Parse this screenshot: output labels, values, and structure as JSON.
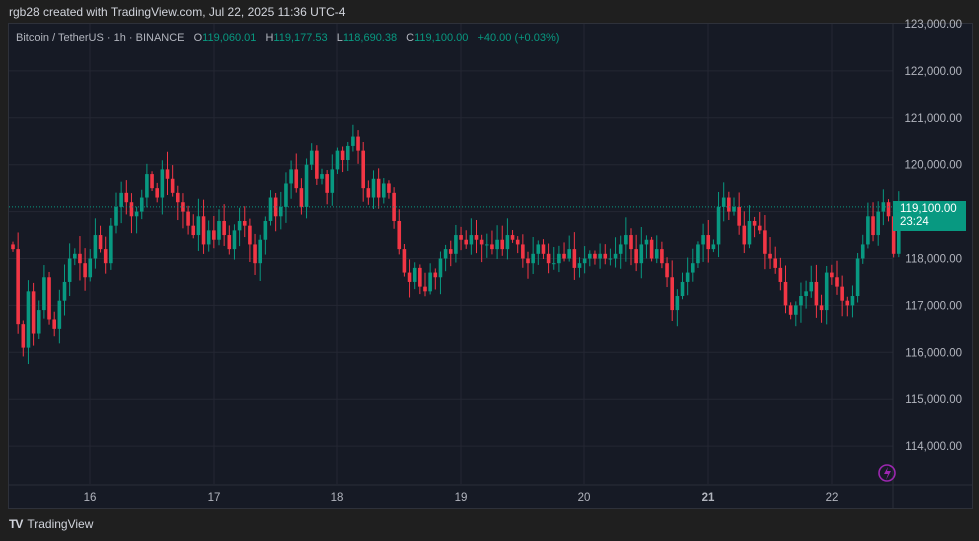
{
  "credit": "rgb28 created with TradingView.com, Jul 22, 2025 11:36 UTC-4",
  "legend": {
    "symbol": "Bitcoin / TetherUS · 1h · BINANCE",
    "open_label": "O",
    "open": "119,060.01",
    "high_label": "H",
    "high": "119,177.53",
    "low_label": "L",
    "low": "118,690.38",
    "close_label": "C",
    "close": "119,100.00",
    "change": "+40.00 (+0.03%)"
  },
  "price_tag": {
    "price": "119,100.00",
    "countdown": "23:24"
  },
  "footer": {
    "logo": "TV",
    "brand": "TradingView"
  },
  "colors": {
    "up": "#089981",
    "down": "#f23645",
    "bg": "#161a25",
    "grid": "#242733",
    "axis_text": "#b2b5be",
    "accent_icon": "#9c27b0"
  },
  "chart_data": {
    "type": "candlestick",
    "title": "Bitcoin / TetherUS · 1h · BINANCE",
    "xlabel": "",
    "ylabel": "",
    "x_ticks": [
      "16",
      "17",
      "18",
      "19",
      "20",
      "21",
      "22"
    ],
    "y_ticks": [
      "123,000.00",
      "122,000.00",
      "121,000.00",
      "120,000.00",
      "119,000.00",
      "118,000.00",
      "117,000.00",
      "116,000.00",
      "115,000.00",
      "114,000.00"
    ],
    "ylim": [
      113200,
      123000
    ],
    "grid": true,
    "last_price": 119100,
    "closes": [
      118200,
      116600,
      116100,
      117300,
      116400,
      116900,
      117600,
      116700,
      116500,
      117100,
      117500,
      118000,
      118100,
      117900,
      117600,
      118000,
      118500,
      118200,
      117900,
      118700,
      119100,
      119400,
      119200,
      118900,
      119000,
      119300,
      119800,
      119500,
      119300,
      119900,
      119700,
      119400,
      119200,
      119000,
      118700,
      118500,
      118900,
      118300,
      118600,
      118400,
      118800,
      118500,
      118200,
      118600,
      118800,
      118700,
      118300,
      117900,
      118400,
      118800,
      119300,
      118900,
      119100,
      119600,
      119900,
      119500,
      119100,
      120000,
      120300,
      119700,
      119800,
      119400,
      119900,
      120300,
      120100,
      120400,
      120600,
      120300,
      119500,
      119300,
      119700,
      119300,
      119600,
      119400,
      118800,
      118200,
      117700,
      117500,
      117800,
      117400,
      117300,
      117700,
      117600,
      118000,
      118200,
      118100,
      118500,
      118400,
      118300,
      118500,
      118400,
      118300,
      118300,
      118200,
      118400,
      118200,
      118500,
      118400,
      118300,
      118000,
      117900,
      118100,
      118300,
      118100,
      117900,
      117900,
      118100,
      118000,
      118200,
      117800,
      117900,
      118000,
      118100,
      118000,
      118100,
      118000,
      118000,
      118100,
      118300,
      118500,
      118200,
      117900,
      118300,
      118400,
      118000,
      118200,
      117900,
      117600,
      116900,
      117200,
      117500,
      117700,
      117900,
      118300,
      118500,
      118200,
      118300,
      119100,
      119300,
      119000,
      119100,
      118700,
      118300,
      118800,
      118700,
      118600,
      118100,
      118000,
      117800,
      117500,
      117000,
      116800,
      117000,
      117200,
      117300,
      117500,
      117000,
      116900,
      117700,
      117600,
      117400,
      117100,
      117000,
      117200,
      118000,
      118300,
      118900,
      118500,
      119000,
      119200,
      118900,
      118100,
      119100
    ]
  }
}
